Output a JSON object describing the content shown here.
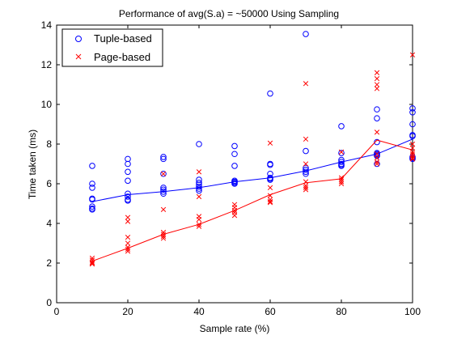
{
  "chart_data": {
    "type": "scatter",
    "title": "Performance of avg(S.a) = ~50000 Using Sampling",
    "xlabel": "Sample rate (%)",
    "ylabel": "Time taken (ms)",
    "xlim": [
      0,
      100
    ],
    "ylim": [
      0,
      14
    ],
    "xticks": [
      0,
      20,
      40,
      60,
      80,
      100
    ],
    "yticks": [
      0,
      2,
      4,
      6,
      8,
      10,
      12,
      14
    ],
    "x_tick_labels": [
      "0",
      "20",
      "40",
      "60",
      "80",
      "100"
    ],
    "y_tick_labels": [
      "0",
      "2",
      "4",
      "6",
      "8",
      "10",
      "12",
      "14"
    ],
    "grid": false,
    "legend_position": "top-left",
    "series": [
      {
        "name": "Tuple-based",
        "marker": "circle",
        "color": "#0000ff",
        "points": [
          [
            10,
            6.9
          ],
          [
            10,
            6.0
          ],
          [
            10,
            5.8
          ],
          [
            10,
            5.25
          ],
          [
            10,
            5.2
          ],
          [
            10,
            4.85
          ],
          [
            10,
            4.75
          ],
          [
            10,
            4.7
          ],
          [
            20,
            7.25
          ],
          [
            20,
            7.0
          ],
          [
            20,
            6.6
          ],
          [
            20,
            6.15
          ],
          [
            20,
            5.5
          ],
          [
            20,
            5.35
          ],
          [
            20,
            5.2
          ],
          [
            20,
            5.15
          ],
          [
            30,
            7.35
          ],
          [
            30,
            7.25
          ],
          [
            30,
            6.5
          ],
          [
            30,
            5.8
          ],
          [
            30,
            5.7
          ],
          [
            30,
            5.6
          ],
          [
            30,
            5.5
          ],
          [
            40,
            8.0
          ],
          [
            40,
            6.2
          ],
          [
            40,
            6.05
          ],
          [
            40,
            5.95
          ],
          [
            40,
            5.85
          ],
          [
            40,
            5.75
          ],
          [
            40,
            5.65
          ],
          [
            50,
            7.9
          ],
          [
            50,
            7.5
          ],
          [
            50,
            6.9
          ],
          [
            50,
            6.15
          ],
          [
            50,
            6.1
          ],
          [
            50,
            6.05
          ],
          [
            50,
            6.0
          ],
          [
            60,
            10.55
          ],
          [
            60,
            7.0
          ],
          [
            60,
            6.95
          ],
          [
            60,
            6.5
          ],
          [
            60,
            6.3
          ],
          [
            60,
            6.25
          ],
          [
            60,
            6.2
          ],
          [
            70,
            13.55
          ],
          [
            70,
            7.65
          ],
          [
            70,
            6.8
          ],
          [
            70,
            6.7
          ],
          [
            70,
            6.6
          ],
          [
            70,
            6.5
          ],
          [
            80,
            8.9
          ],
          [
            80,
            7.55
          ],
          [
            80,
            7.2
          ],
          [
            80,
            7.1
          ],
          [
            80,
            7.0
          ],
          [
            80,
            6.95
          ],
          [
            80,
            6.9
          ],
          [
            90,
            9.75
          ],
          [
            90,
            9.3
          ],
          [
            90,
            8.1
          ],
          [
            90,
            7.55
          ],
          [
            90,
            7.5
          ],
          [
            90,
            7.45
          ],
          [
            90,
            7.4
          ],
          [
            90,
            7.0
          ],
          [
            100,
            9.8
          ],
          [
            100,
            9.6
          ],
          [
            100,
            9.0
          ],
          [
            100,
            8.45
          ],
          [
            100,
            8.4
          ],
          [
            100,
            7.35
          ],
          [
            100,
            7.3
          ],
          [
            100,
            7.25
          ]
        ],
        "mean_line": [
          [
            10,
            5.1
          ],
          [
            20,
            5.45
          ],
          [
            30,
            5.6
          ],
          [
            40,
            5.8
          ],
          [
            50,
            6.1
          ],
          [
            60,
            6.3
          ],
          [
            70,
            6.65
          ],
          [
            80,
            7.1
          ],
          [
            90,
            7.5
          ],
          [
            100,
            8.25
          ]
        ]
      },
      {
        "name": "Page-based",
        "marker": "x",
        "color": "#ff0000",
        "points": [
          [
            10,
            2.25
          ],
          [
            10,
            2.15
          ],
          [
            10,
            2.05
          ],
          [
            10,
            2.0
          ],
          [
            10,
            1.95
          ],
          [
            20,
            4.3
          ],
          [
            20,
            4.1
          ],
          [
            20,
            3.3
          ],
          [
            20,
            3.0
          ],
          [
            20,
            2.8
          ],
          [
            20,
            2.7
          ],
          [
            20,
            2.6
          ],
          [
            30,
            6.5
          ],
          [
            30,
            4.7
          ],
          [
            30,
            3.55
          ],
          [
            30,
            3.45
          ],
          [
            30,
            3.35
          ],
          [
            30,
            3.25
          ],
          [
            40,
            6.6
          ],
          [
            40,
            5.35
          ],
          [
            40,
            4.35
          ],
          [
            40,
            4.2
          ],
          [
            40,
            3.95
          ],
          [
            40,
            3.85
          ],
          [
            50,
            4.95
          ],
          [
            50,
            4.8
          ],
          [
            50,
            4.65
          ],
          [
            50,
            4.55
          ],
          [
            50,
            4.4
          ],
          [
            60,
            8.05
          ],
          [
            60,
            5.8
          ],
          [
            60,
            5.4
          ],
          [
            60,
            5.2
          ],
          [
            60,
            5.1
          ],
          [
            60,
            5.05
          ],
          [
            70,
            11.05
          ],
          [
            70,
            8.25
          ],
          [
            70,
            7.0
          ],
          [
            70,
            6.1
          ],
          [
            70,
            5.9
          ],
          [
            70,
            5.8
          ],
          [
            70,
            5.7
          ],
          [
            80,
            7.6
          ],
          [
            80,
            6.3
          ],
          [
            80,
            6.2
          ],
          [
            80,
            6.1
          ],
          [
            80,
            6.0
          ],
          [
            90,
            11.6
          ],
          [
            90,
            11.3
          ],
          [
            90,
            11.0
          ],
          [
            90,
            10.8
          ],
          [
            90,
            8.6
          ],
          [
            90,
            7.5
          ],
          [
            90,
            7.3
          ],
          [
            90,
            7.1
          ],
          [
            90,
            7.0
          ],
          [
            100,
            12.5
          ],
          [
            100,
            8.0
          ],
          [
            100,
            7.8
          ],
          [
            100,
            7.6
          ],
          [
            100,
            7.5
          ],
          [
            100,
            7.4
          ],
          [
            100,
            7.3
          ],
          [
            100,
            7.25
          ]
        ],
        "mean_line": [
          [
            10,
            2.1
          ],
          [
            20,
            2.75
          ],
          [
            30,
            3.45
          ],
          [
            40,
            3.95
          ],
          [
            50,
            4.65
          ],
          [
            60,
            5.45
          ],
          [
            70,
            6.05
          ],
          [
            80,
            6.25
          ],
          [
            90,
            8.2
          ],
          [
            100,
            7.7
          ]
        ]
      }
    ]
  }
}
